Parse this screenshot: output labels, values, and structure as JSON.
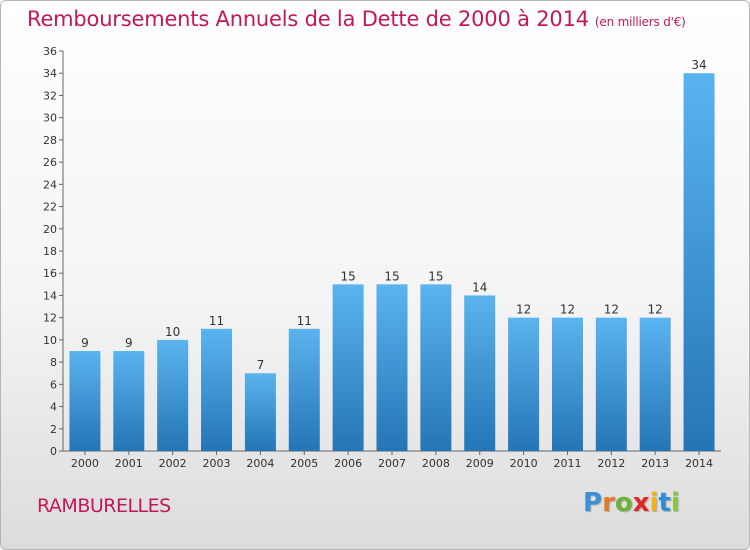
{
  "title": "Remboursements Annuels de la Dette de 2000 à 2014",
  "unit": "(en milliers d'€)",
  "commune": "RAMBURELLES",
  "logo": {
    "letters": [
      "P",
      "r",
      "o",
      "x",
      "i",
      "t",
      "i"
    ],
    "colors": [
      "#3a8fd6",
      "#e6792b",
      "#6bb335",
      "#e1262b",
      "#f2b11f",
      "#2e8dd4",
      "#8cc63f"
    ]
  },
  "colors": {
    "bar": "#3d9de3",
    "title": "#c2185b"
  },
  "chart_data": {
    "type": "bar",
    "categories": [
      "2000",
      "2001",
      "2002",
      "2003",
      "2004",
      "2005",
      "2006",
      "2007",
      "2008",
      "2009",
      "2010",
      "2011",
      "2012",
      "2013",
      "2014"
    ],
    "values": [
      9,
      9,
      10,
      11,
      7,
      11,
      15,
      15,
      15,
      14,
      12,
      12,
      12,
      12,
      34
    ],
    "ylim": [
      0,
      36
    ],
    "yticks": [
      0,
      2,
      4,
      6,
      8,
      10,
      12,
      14,
      16,
      18,
      20,
      22,
      24,
      26,
      28,
      30,
      32,
      34,
      36
    ],
    "grid": false,
    "data_labels": true
  }
}
